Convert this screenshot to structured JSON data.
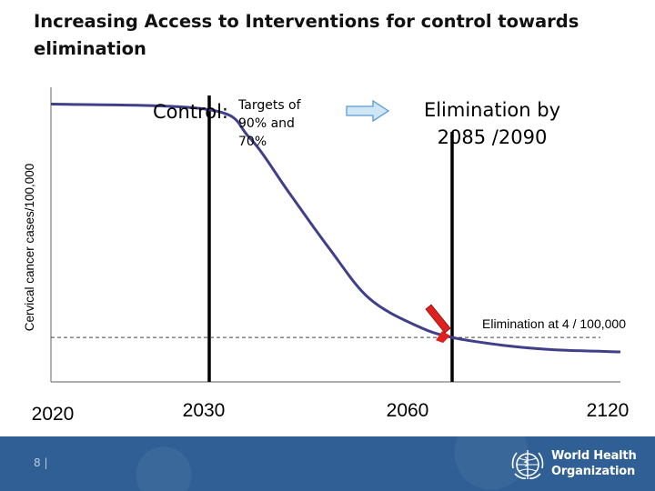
{
  "slide": {
    "title": "Increasing Access to Interventions for control towards elimination",
    "page_number": "8 |"
  },
  "logo": {
    "line1": "World Health",
    "line2": "Organization"
  },
  "colors": {
    "curve": "#3f3f8a",
    "arrow_fill": "#cfe6f4",
    "arrow_stroke": "#5b9bd5",
    "marker": "#e0201c",
    "footer": "#2f5f95"
  },
  "chart_data": {
    "type": "line",
    "title": "",
    "xlabel": "",
    "ylabel": "Cervical cancer cases/100,000",
    "x_ticks": [
      "2020",
      "2030",
      "2060",
      "2120"
    ],
    "series": [
      {
        "values": [
          {
            "x": 2020,
            "y": 25
          },
          {
            "x": 2030,
            "y": 24.5
          },
          {
            "x": 2036,
            "y": 22
          },
          {
            "x": 2042,
            "y": 17
          },
          {
            "x": 2048,
            "y": 12
          },
          {
            "x": 2054,
            "y": 7.5
          },
          {
            "x": 2062,
            "y": 5
          },
          {
            "x": 2070,
            "y": 4
          },
          {
            "x": 2085,
            "y": 3.3
          },
          {
            "x": 2100,
            "y": 2.9
          },
          {
            "x": 2120,
            "y": 2.7
          }
        ]
      }
    ],
    "reference_lines": [
      {
        "axis": "x",
        "value": 2030
      },
      {
        "axis": "x",
        "value": 2070
      }
    ],
    "threshold_line": {
      "axis": "y",
      "value": 4,
      "style": "dashed"
    },
    "annotations": {
      "control_label": "Control:",
      "control_targets": "Targets of 90% and 70%",
      "elimination_label": "Elimination by 2085 /2090",
      "threshold_label": "Elimination at 4 / 100,000"
    }
  }
}
